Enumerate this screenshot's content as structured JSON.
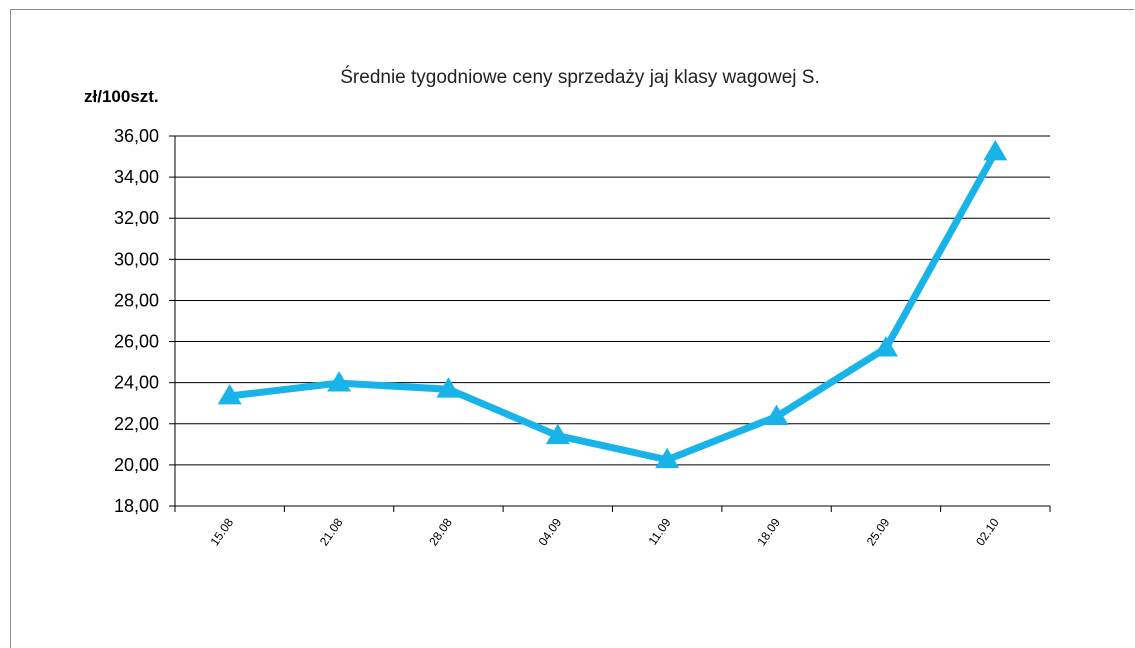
{
  "chart_data": {
    "type": "line",
    "title": "Średnie tygodniowe ceny sprzedaży jaj klasy wagowej S.",
    "ylabel": "zł/100szt.",
    "xlabel": "",
    "categories": [
      "15.08",
      "21.08",
      "28.08",
      "04.09",
      "11.09",
      "18.09",
      "25.09",
      "02.10"
    ],
    "series": [
      {
        "values": [
          23.35,
          23.98,
          23.68,
          21.42,
          20.25,
          22.35,
          25.68,
          35.22
        ]
      }
    ],
    "ylim": [
      18,
      36
    ],
    "ytick_labels": [
      "18,00",
      "20,00",
      "22,00",
      "24,00",
      "26,00",
      "28,00",
      "30,00",
      "32,00",
      "34,00",
      "36,00"
    ],
    "grid": true,
    "line_color": "#18B4E9",
    "marker": "triangle"
  }
}
